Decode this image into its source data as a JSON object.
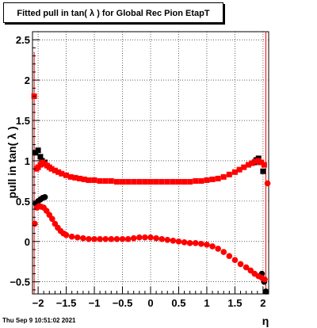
{
  "header": {
    "title": "Fitted pull in tan( λ ) for Global Rec Pion EtapT",
    "timestamp": "Thu Sep  9 10:51:02 2021"
  },
  "chart_data": {
    "type": "scatter",
    "title": "Fitted pull in tan( λ ) for Global Rec Pion EtapT",
    "xlabel": "η",
    "ylabel": "pull in tan( λ )",
    "xlim": [
      -2.1,
      2.1
    ],
    "ylim": [
      -0.65,
      2.6
    ],
    "grid": true,
    "x_ticks": [
      -2,
      -1.5,
      -1,
      -0.5,
      0,
      0.5,
      1,
      1.5,
      2
    ],
    "x_tick_labels": [
      "−2",
      "−1.5",
      "−1",
      "−0.5",
      "0",
      "0.5",
      "1",
      "1.5",
      "2"
    ],
    "y_ticks": [
      -0.5,
      0,
      0.5,
      1,
      1.5,
      2,
      2.5
    ],
    "y_tick_labels": [
      "−0.5",
      "0",
      "0.5",
      "1",
      "1.5",
      "2",
      "2.5"
    ],
    "colors": {
      "black_series": "#000000",
      "red_series": "#ff0000"
    },
    "series": [
      {
        "marker": "square",
        "color": "#000000",
        "points": [
          [
            -2.05,
            1.1
          ],
          [
            -2.0,
            1.13
          ],
          [
            -1.96,
            1.05
          ],
          [
            -1.93,
            1.0
          ],
          [
            -1.88,
            0.98
          ],
          [
            1.85,
            0.98
          ],
          [
            1.88,
            1.01
          ],
          [
            1.92,
            1.03
          ],
          [
            1.96,
            0.98
          ],
          [
            2.0,
            0.87
          ]
        ]
      },
      {
        "marker": "circle",
        "color": "#000000",
        "points": [
          [
            -2.04,
            0.47
          ],
          [
            -2.0,
            0.5
          ],
          [
            -1.96,
            0.52
          ],
          [
            -1.92,
            0.54
          ],
          [
            -1.88,
            0.55
          ],
          [
            1.98,
            -0.4
          ],
          [
            2.02,
            -0.5
          ],
          [
            2.05,
            -0.62
          ]
        ]
      },
      {
        "marker": "square",
        "color": "#ff0000",
        "points": [
          [
            -2.07,
            1.8
          ],
          [
            -2.03,
            0.9
          ],
          [
            -2.0,
            0.92
          ],
          [
            -1.96,
            0.95
          ],
          [
            -1.92,
            0.98
          ],
          [
            -1.88,
            0.96
          ],
          [
            -1.84,
            0.94
          ],
          [
            -1.8,
            0.92
          ],
          [
            -1.76,
            0.9
          ],
          [
            -1.7,
            0.88
          ],
          [
            -1.64,
            0.86
          ],
          [
            -1.58,
            0.84
          ],
          [
            -1.5,
            0.82
          ],
          [
            -1.42,
            0.8
          ],
          [
            -1.34,
            0.79
          ],
          [
            -1.26,
            0.78
          ],
          [
            -1.18,
            0.77
          ],
          [
            -1.1,
            0.76
          ],
          [
            -1.0,
            0.76
          ],
          [
            -0.9,
            0.75
          ],
          [
            -0.8,
            0.75
          ],
          [
            -0.7,
            0.75
          ],
          [
            -0.6,
            0.74
          ],
          [
            -0.5,
            0.74
          ],
          [
            -0.4,
            0.74
          ],
          [
            -0.3,
            0.74
          ],
          [
            -0.2,
            0.74
          ],
          [
            -0.1,
            0.74
          ],
          [
            0.0,
            0.74
          ],
          [
            0.1,
            0.74
          ],
          [
            0.2,
            0.74
          ],
          [
            0.3,
            0.74
          ],
          [
            0.4,
            0.74
          ],
          [
            0.5,
            0.74
          ],
          [
            0.6,
            0.74
          ],
          [
            0.7,
            0.74
          ],
          [
            0.8,
            0.75
          ],
          [
            0.9,
            0.75
          ],
          [
            1.0,
            0.76
          ],
          [
            1.1,
            0.77
          ],
          [
            1.2,
            0.78
          ],
          [
            1.3,
            0.8
          ],
          [
            1.4,
            0.83
          ],
          [
            1.5,
            0.86
          ],
          [
            1.58,
            0.89
          ],
          [
            1.66,
            0.92
          ],
          [
            1.74,
            0.95
          ],
          [
            1.8,
            0.97
          ],
          [
            1.86,
            0.99
          ],
          [
            1.92,
            1.0
          ],
          [
            1.97,
            0.98
          ],
          [
            2.02,
            0.95
          ]
        ]
      },
      {
        "marker": "circle",
        "color": "#ff0000",
        "points": [
          [
            -2.06,
            0.22
          ],
          [
            -2.02,
            0.42
          ],
          [
            -1.98,
            0.44
          ],
          [
            -1.94,
            0.43
          ],
          [
            -1.9,
            0.42
          ],
          [
            -1.85,
            0.38
          ],
          [
            -1.8,
            0.33
          ],
          [
            -1.75,
            0.28
          ],
          [
            -1.7,
            0.22
          ],
          [
            -1.65,
            0.17
          ],
          [
            -1.6,
            0.13
          ],
          [
            -1.55,
            0.1
          ],
          [
            -1.5,
            0.08
          ],
          [
            -1.4,
            0.06
          ],
          [
            -1.3,
            0.05
          ],
          [
            -1.2,
            0.04
          ],
          [
            -1.1,
            0.03
          ],
          [
            -1.0,
            0.03
          ],
          [
            -0.9,
            0.03
          ],
          [
            -0.8,
            0.03
          ],
          [
            -0.7,
            0.03
          ],
          [
            -0.6,
            0.03
          ],
          [
            -0.5,
            0.03
          ],
          [
            -0.4,
            0.03
          ],
          [
            -0.3,
            0.04
          ],
          [
            -0.2,
            0.05
          ],
          [
            -0.1,
            0.05
          ],
          [
            0.0,
            0.05
          ],
          [
            0.1,
            0.04
          ],
          [
            0.2,
            0.03
          ],
          [
            0.3,
            0.02
          ],
          [
            0.4,
            0.01
          ],
          [
            0.5,
            0.0
          ],
          [
            0.6,
            -0.01
          ],
          [
            0.7,
            -0.02
          ],
          [
            0.8,
            -0.02
          ],
          [
            0.9,
            -0.03
          ],
          [
            1.0,
            -0.04
          ],
          [
            1.1,
            -0.06
          ],
          [
            1.2,
            -0.09
          ],
          [
            1.3,
            -0.13
          ],
          [
            1.4,
            -0.18
          ],
          [
            1.5,
            -0.23
          ],
          [
            1.6,
            -0.28
          ],
          [
            1.7,
            -0.32
          ],
          [
            1.78,
            -0.36
          ],
          [
            1.85,
            -0.4
          ],
          [
            1.92,
            -0.43
          ],
          [
            1.98,
            -0.45
          ],
          [
            2.03,
            -0.47
          ],
          [
            2.08,
            0.72
          ]
        ]
      }
    ],
    "error_bars": [
      {
        "x": -2.07,
        "y_low": -0.65,
        "y_high": 2.35,
        "color": "#ff0000"
      },
      {
        "x": 2.05,
        "y_low": -0.65,
        "y_high": 2.6,
        "color": "#ff0000"
      }
    ]
  }
}
